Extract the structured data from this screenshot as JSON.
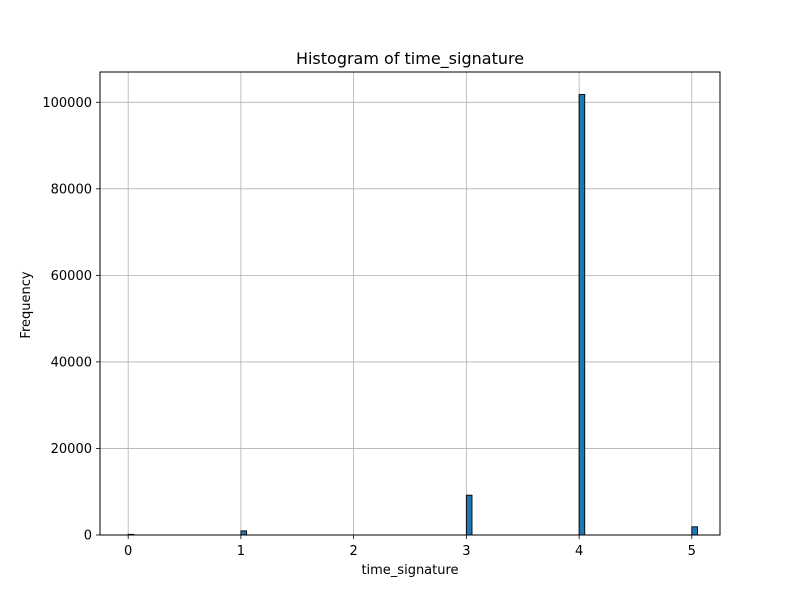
{
  "chart_data": {
    "type": "bar",
    "title": "Histogram of time_signature",
    "xlabel": "time_signature",
    "ylabel": "Frequency",
    "x_range": [
      -0.25,
      5.25
    ],
    "ylim": [
      0,
      107000
    ],
    "grid": true,
    "x_ticks": [
      "0",
      "1",
      "2",
      "3",
      "4",
      "5"
    ],
    "y_ticks": [
      "0",
      "20000",
      "40000",
      "60000",
      "80000",
      "100000"
    ],
    "bin_width": 0.05,
    "bins": [
      {
        "x": 0,
        "value": 150
      },
      {
        "x": 1,
        "value": 950
      },
      {
        "x": 3,
        "value": 9200
      },
      {
        "x": 4,
        "value": 101800
      },
      {
        "x": 5,
        "value": 1900
      }
    ],
    "colors": {
      "bar_fill": "#1f77b4",
      "bar_edge": "#000000",
      "grid": "#b0b0b0"
    }
  }
}
